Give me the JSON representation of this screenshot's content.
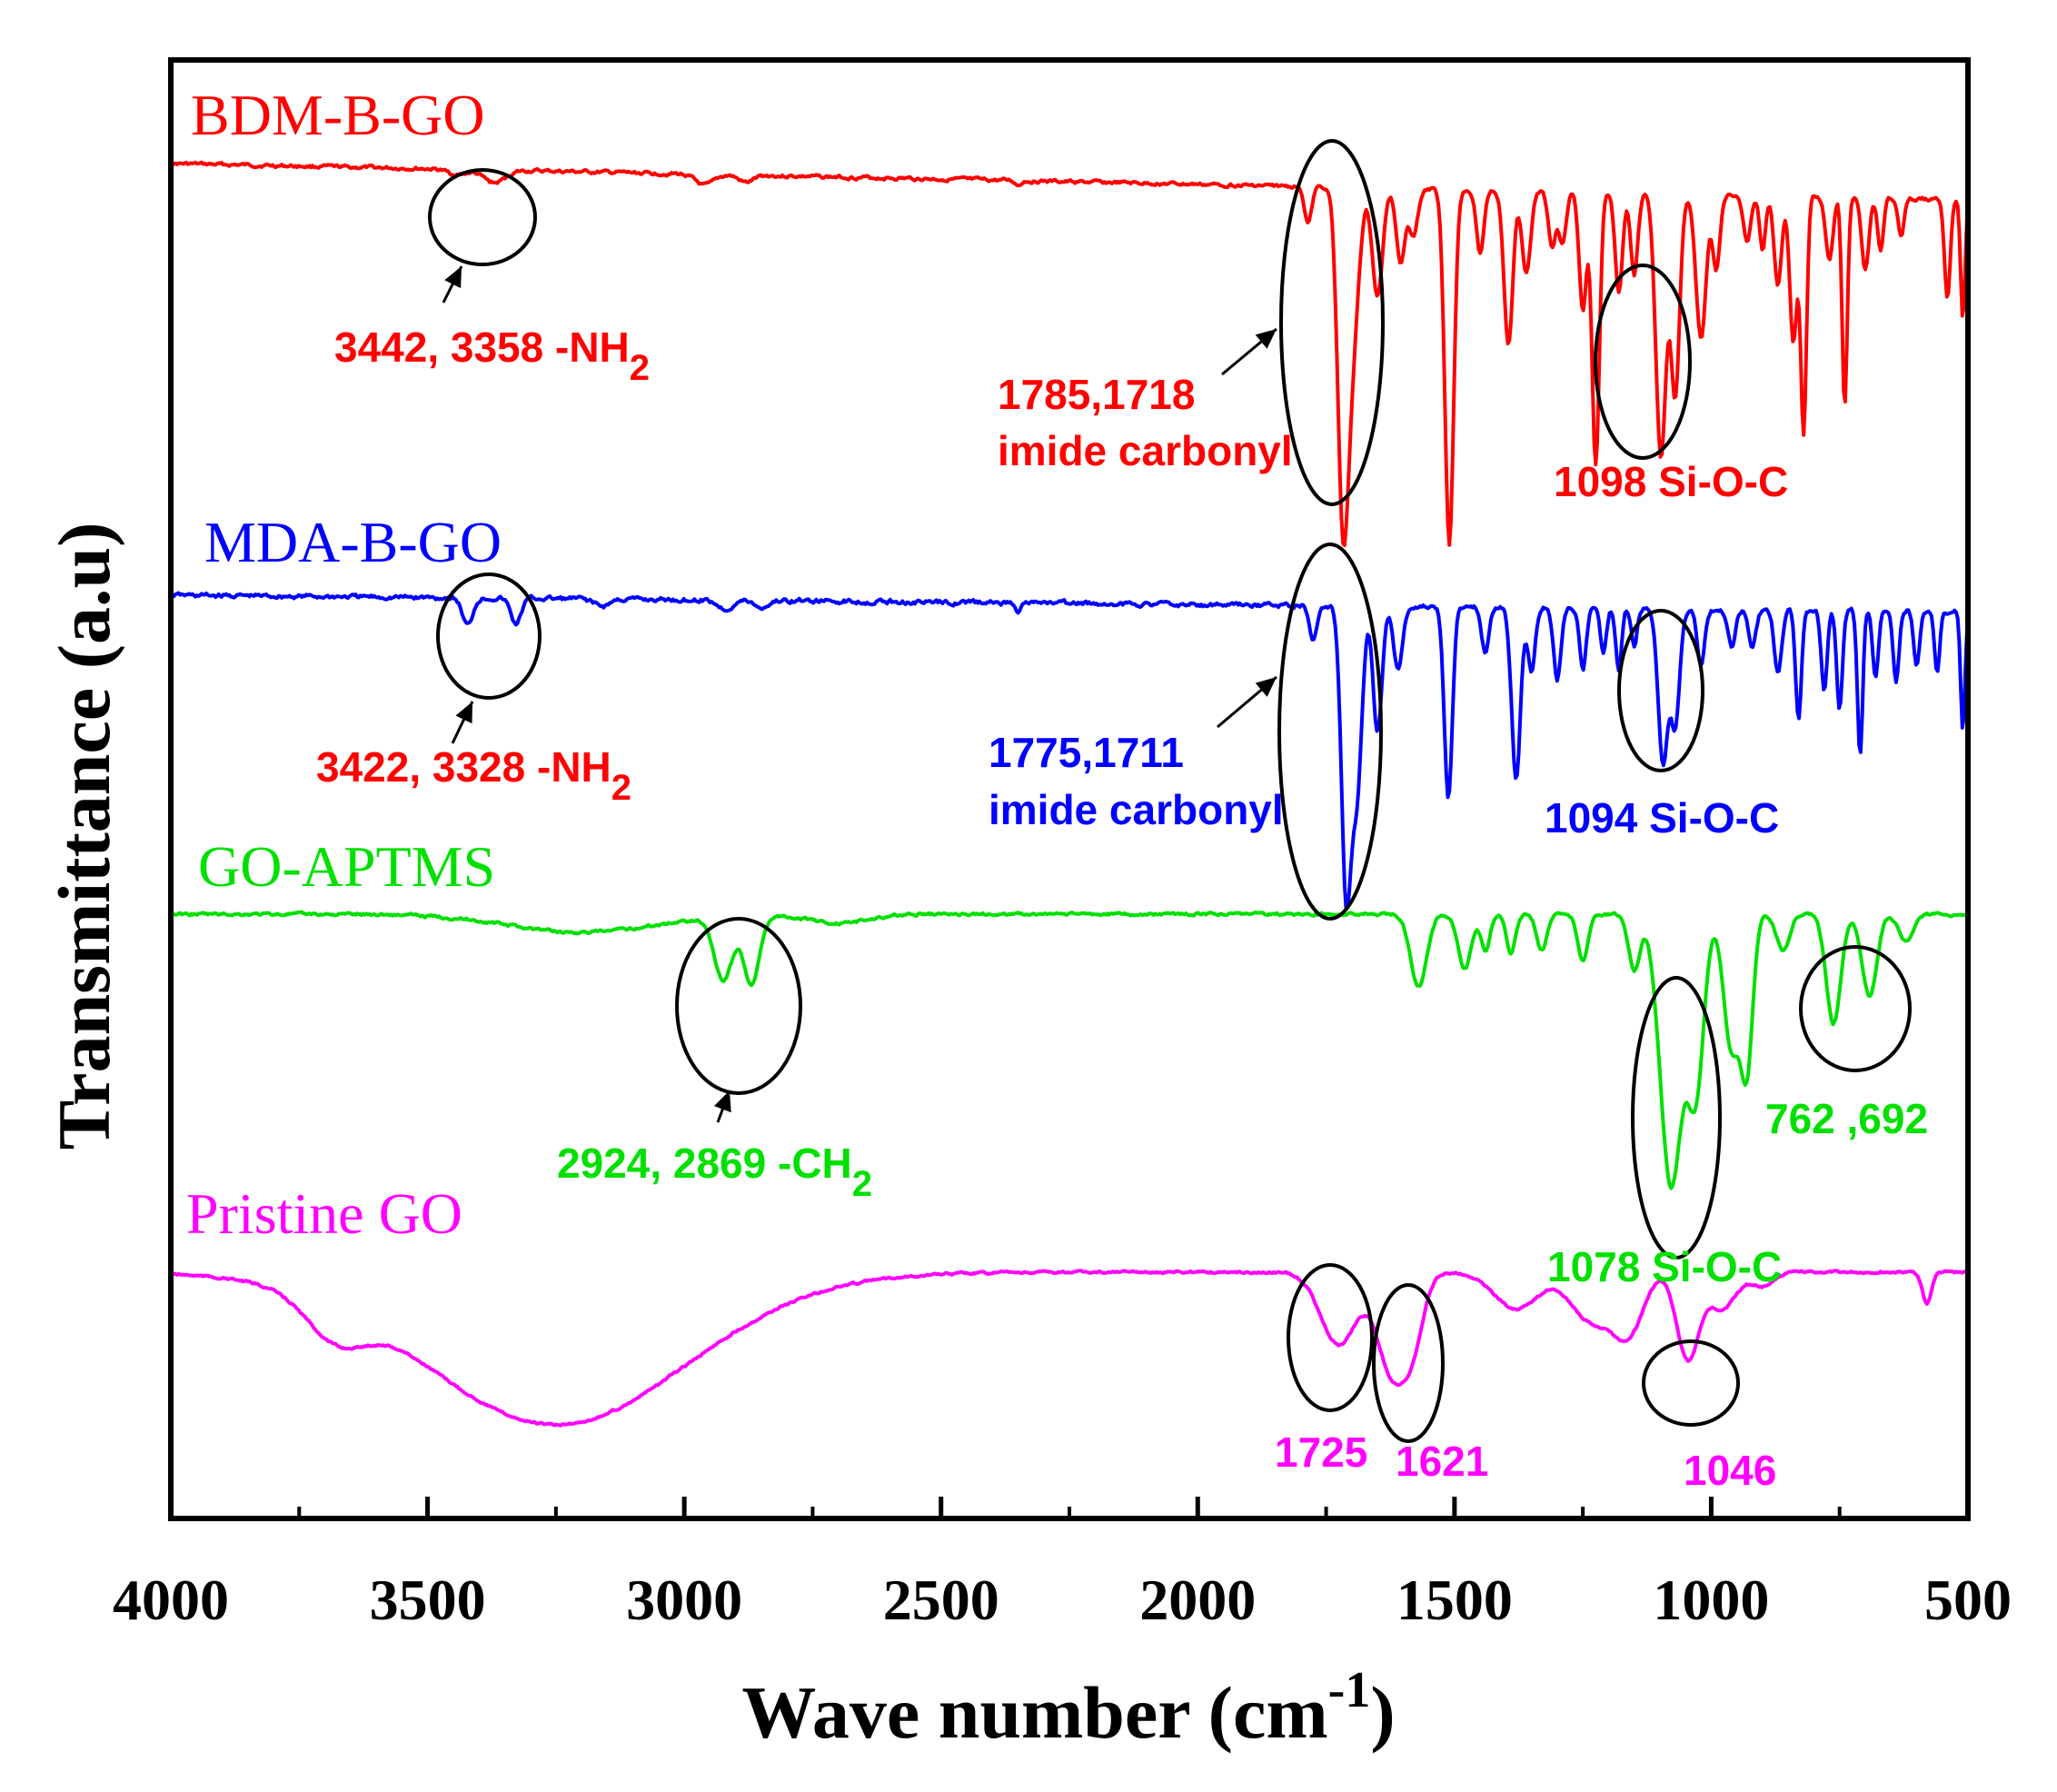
{
  "chart_data": {
    "type": "line",
    "title": "",
    "xlabel": "Wave number (cm",
    "xlabel_sup": "-1",
    "xlabel_close": ")",
    "ylabel": "Transmittance (a.u)",
    "xlim": [
      4000,
      500
    ],
    "x_ticks": [
      "4000",
      "3500",
      "3000",
      "2500",
      "2000",
      "1500",
      "1000",
      "500"
    ],
    "series": [
      {
        "name": "BDM-B-GO",
        "color": "#ff0000",
        "annotations": [
          {
            "text": "3442, 3358  -NH",
            "sub": "2",
            "wavenumber": 3400,
            "kind": "bracket"
          },
          {
            "lines": [
              "1785,1718",
              "imide carbonyl"
            ],
            "wavenumber": 1730,
            "kind": "bracket"
          },
          {
            "text": "1098 Si-O-C",
            "wavenumber": 1090,
            "kind": "bracket"
          }
        ]
      },
      {
        "name": "MDA-B-GO",
        "color": "#0000ff",
        "annotations": [
          {
            "text": "3422, 3328 -NH",
            "sub": "2",
            "color": "#ff0000",
            "wavenumber": 3380,
            "kind": "bracket"
          },
          {
            "lines": [
              "1775,1711",
              "imide carbonyl"
            ],
            "wavenumber": 1725,
            "kind": "bracket"
          },
          {
            "text": "1094 Si-O-C",
            "wavenumber": 1080,
            "kind": "bracket"
          }
        ]
      },
      {
        "name": "GO-APTMS",
        "color": "#00e000",
        "annotations": [
          {
            "text": "2924, 2869 -CH",
            "sub": "2",
            "wavenumber": 2900,
            "kind": "bracket"
          },
          {
            "text": "1078 Si-O-C",
            "wavenumber": 1060,
            "kind": "bracket"
          },
          {
            "text": "762 ,692",
            "wavenumber": 730,
            "kind": "bracket"
          }
        ]
      },
      {
        "name": "Pristine GO",
        "color": "#ff00ff",
        "annotations": [
          {
            "text": "1725",
            "wavenumber": 1725,
            "kind": "bracket"
          },
          {
            "text": "1621",
            "wavenumber": 1621,
            "kind": "bracket"
          },
          {
            "text": "1046",
            "wavenumber": 1046,
            "kind": "bracket"
          }
        ]
      }
    ]
  }
}
